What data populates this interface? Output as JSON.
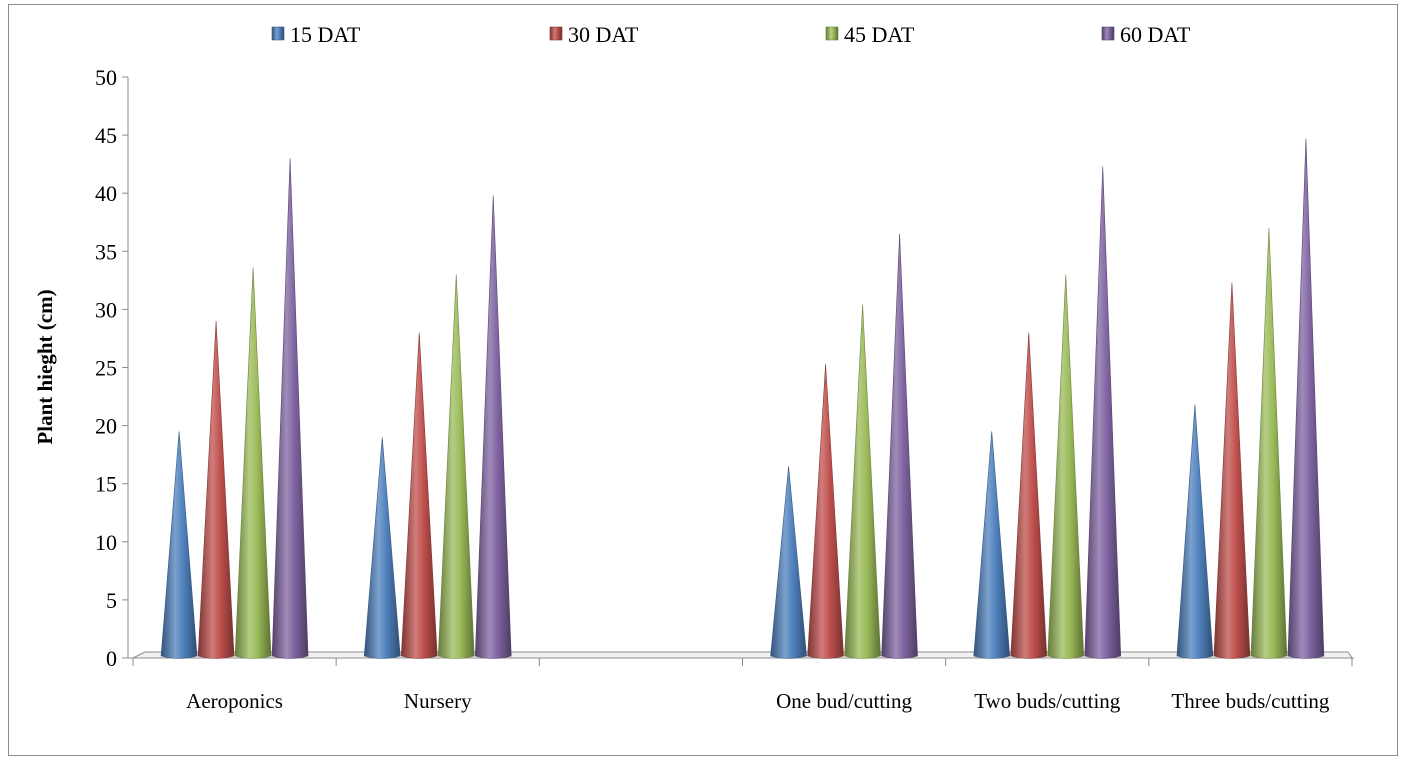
{
  "chart_data": {
    "type": "bar",
    "bar_shape": "cone",
    "title": "",
    "xlabel": "",
    "ylabel": "Plant hieght (cm)",
    "ylim": [
      0,
      50
    ],
    "yticks": [
      0,
      5,
      10,
      15,
      20,
      25,
      30,
      35,
      40,
      45,
      50
    ],
    "grid": false,
    "legend_position": "top",
    "categories": [
      "Aeroponics",
      "Nursery",
      "",
      "One bud/cutting",
      "Two buds/cutting",
      "Three buds/cutting"
    ],
    "series": [
      {
        "name": "15 DAT",
        "color": "#4f81bd",
        "values": [
          19.5,
          19.0,
          null,
          16.5,
          19.5,
          21.8
        ]
      },
      {
        "name": "30 DAT",
        "color": "#c0504d",
        "values": [
          29.0,
          28.0,
          null,
          25.3,
          28.0,
          32.3
        ]
      },
      {
        "name": "45 DAT",
        "color": "#9bbb59",
        "values": [
          33.6,
          33.0,
          null,
          30.4,
          33.0,
          37.0
        ]
      },
      {
        "name": "60 DAT",
        "color": "#8064a2",
        "values": [
          43.0,
          39.8,
          null,
          36.5,
          42.3,
          44.7
        ]
      }
    ]
  }
}
